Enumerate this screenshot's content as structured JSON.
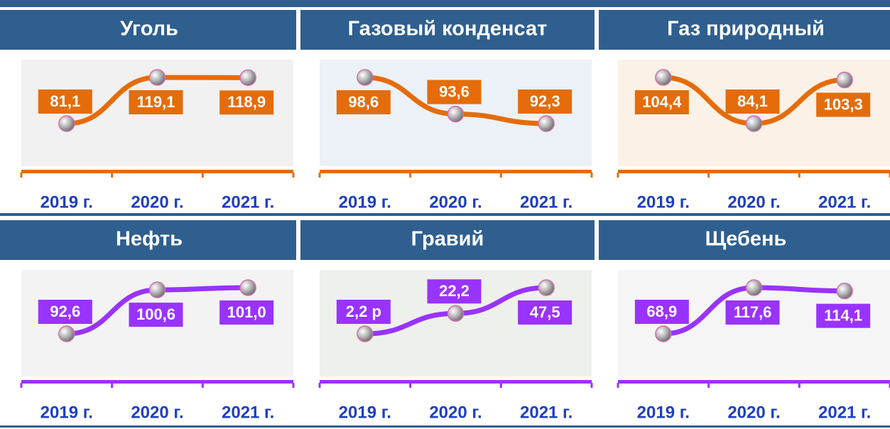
{
  "chart_data": [
    {
      "type": "line",
      "title": "Уголь",
      "categories": [
        "2019 г.",
        "2020 г.",
        "2021 г."
      ],
      "values": [
        81.1,
        119.1,
        118.9
      ],
      "value_labels": [
        "81,1",
        "119,1",
        "118,9"
      ],
      "color": "#e46c0a"
    },
    {
      "type": "line",
      "title": "Газовый конденсат",
      "categories": [
        "2019 г.",
        "2020 г.",
        "2021 г."
      ],
      "values": [
        98.6,
        93.6,
        92.3
      ],
      "value_labels": [
        "98,6",
        "93,6",
        "92,3"
      ],
      "color": "#e46c0a"
    },
    {
      "type": "line",
      "title": "Газ природный",
      "categories": [
        "2019 г.",
        "2020 г.",
        "2021 г."
      ],
      "values": [
        104.4,
        84.1,
        103.3
      ],
      "value_labels": [
        "104,4",
        "84,1",
        "103,3"
      ],
      "color": "#e46c0a"
    },
    {
      "type": "line",
      "title": "Нефть",
      "categories": [
        "2019 г.",
        "2020 г.",
        "2021 г."
      ],
      "values": [
        92.6,
        100.6,
        101.0
      ],
      "value_labels": [
        "92,6",
        "100,6",
        "101,0"
      ],
      "color": "#9933ff"
    },
    {
      "type": "line",
      "title": "Гравий",
      "categories": [
        "2019 г.",
        "2020 г.",
        "2021 г."
      ],
      "values": [
        2.2,
        22.2,
        47.5
      ],
      "value_labels": [
        "2,2 р",
        "22,2",
        "47,5"
      ],
      "color": "#9933ff"
    },
    {
      "type": "line",
      "title": "Щебень",
      "categories": [
        "2019 г.",
        "2020 г.",
        "2021 г."
      ],
      "values": [
        68.9,
        117.6,
        114.1
      ],
      "value_labels": [
        "68,9",
        "117,6",
        "114,1"
      ],
      "color": "#9933ff"
    }
  ]
}
